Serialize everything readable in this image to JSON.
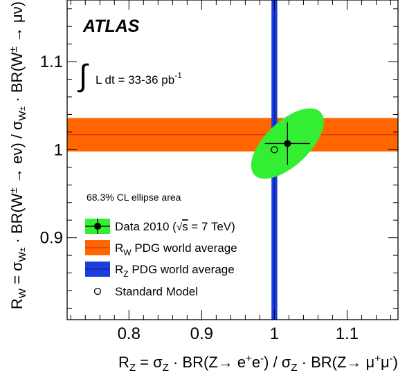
{
  "chart_data": {
    "type": "scatter",
    "experiment_label": "ATLAS",
    "luminosity_label": "∫ L dt = 33-36 pb⁻¹",
    "xlabel": "R_Z = σ_Z · BR(Z→ e⁺e⁻) / σ_Z · BR(Z→ μ⁺μ⁻)",
    "ylabel": "R_W = σ_W± · BR(W± → eν) / σ_W± · BR(W± → μν)",
    "xlim": [
      0.715,
      1.17
    ],
    "ylim": [
      0.807,
      1.17
    ],
    "x_ticks": [
      0.8,
      0.9,
      1,
      1.1
    ],
    "x_tick_labels": [
      "0.8",
      "0.9",
      "1",
      "1.1"
    ],
    "y_ticks": [
      0.9,
      1,
      1.1
    ],
    "y_tick_labels": [
      "0.9",
      "1",
      "1.1"
    ],
    "measurement": {
      "x": 1.018,
      "y": 1.007,
      "x_err": 0.031,
      "y_err": 0.024
    },
    "ellipse_68cl": {
      "center": [
        1.018,
        1.007
      ],
      "semi_major": 0.058,
      "semi_minor": 0.027,
      "angle_deg": 35
    },
    "rw_pdg": {
      "value": 1.017,
      "error": 0.019
    },
    "rz_pdg": {
      "value": 1.0,
      "error": 0.004
    },
    "standard_model": {
      "x": 1.0,
      "y": 1.0
    },
    "colors": {
      "ellipse": "#33ee33",
      "rw_band": "#ff6600",
      "rw_line": "#cc2222",
      "rz_band": "#1a3ddb",
      "rz_line": "#0a1a8a",
      "data": "#000000"
    },
    "legend_title": "68.3% CL ellipse area",
    "legend": [
      {
        "label": "Data 2010 (√s = 7 TeV)",
        "type": "data"
      },
      {
        "label": "R_W PDG world average",
        "type": "rw"
      },
      {
        "label": "R_Z PDG world average",
        "type": "rz"
      },
      {
        "label": "Standard Model",
        "type": "sm"
      }
    ]
  }
}
